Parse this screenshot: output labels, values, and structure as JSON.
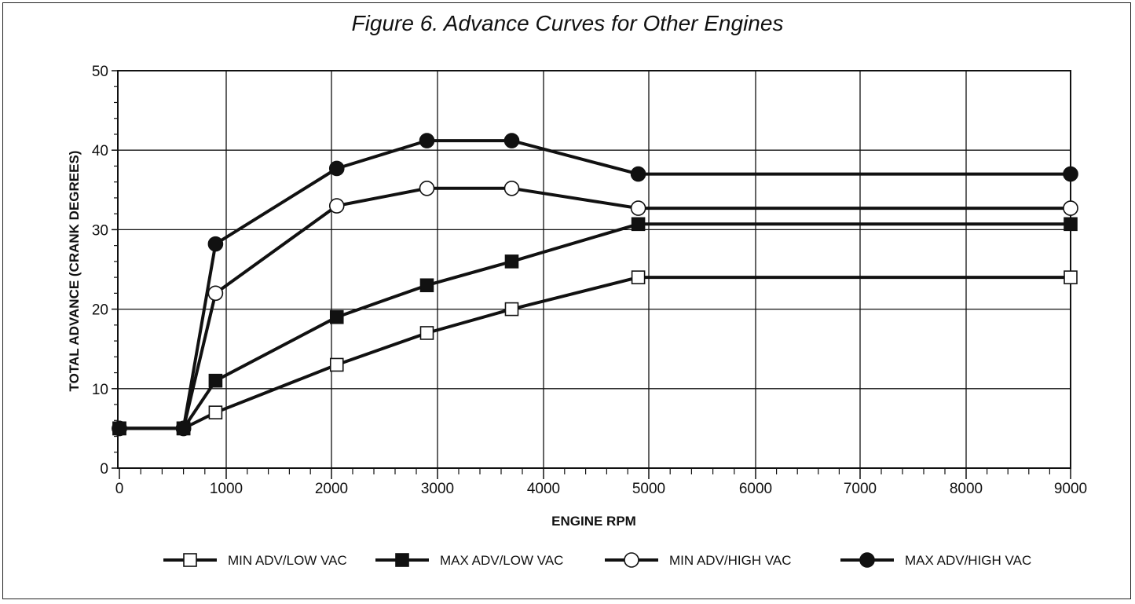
{
  "chart_data": {
    "type": "line",
    "title": "Figure 6.  Advance Curves for Other Engines",
    "xlabel": "ENGINE RPM",
    "ylabel": "TOTAL ADVANCE (CRANK DEGREES)",
    "ylim": [
      0,
      50
    ],
    "y_ticks": [
      "0",
      "10",
      "20",
      "30",
      "40",
      "50"
    ],
    "x_ticks": [
      "0",
      "1000",
      "2000",
      "3000",
      "4000",
      "5000",
      "6000",
      "7000",
      "8000",
      "9000"
    ],
    "grid": true,
    "legend_position": "bottom",
    "series": [
      {
        "name": "MIN ADV/LOW VAC",
        "marker": "open-square",
        "x": [
          0,
          600,
          900,
          2050,
          2900,
          3700,
          4900,
          9000
        ],
        "y": [
          5,
          5,
          7,
          13,
          17,
          20,
          24,
          24
        ]
      },
      {
        "name": "MAX ADV/LOW VAC",
        "marker": "filled-square",
        "x": [
          0,
          600,
          900,
          2050,
          2900,
          3700,
          4900,
          9000
        ],
        "y": [
          5,
          5,
          11,
          19,
          23,
          26,
          30.7,
          30.7
        ]
      },
      {
        "name": "MIN ADV/HIGH VAC",
        "marker": "open-circle",
        "x": [
          0,
          600,
          900,
          2050,
          2900,
          3700,
          4900,
          9000
        ],
        "y": [
          5,
          5,
          22,
          33,
          35.2,
          35.2,
          32.7,
          32.7
        ]
      },
      {
        "name": "MAX ADV/HIGH VAC",
        "marker": "filled-circle",
        "x": [
          0,
          600,
          900,
          2050,
          2900,
          3700,
          4900,
          9000
        ],
        "y": [
          5,
          5,
          28.2,
          37.7,
          41.2,
          41.2,
          37,
          37
        ]
      }
    ]
  }
}
